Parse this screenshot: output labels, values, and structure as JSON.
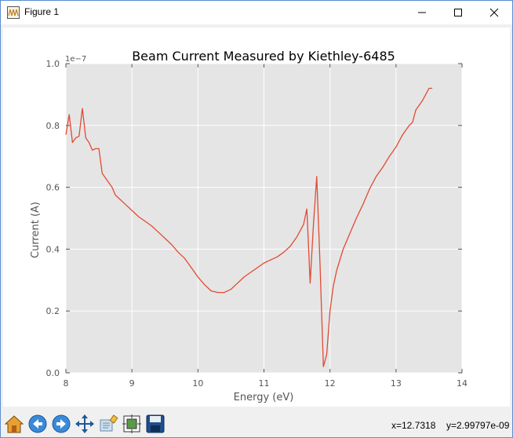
{
  "window": {
    "title": "Figure 1",
    "controls": {
      "minimize": "minimize",
      "maximize": "maximize",
      "close": "close"
    }
  },
  "toolbar": {
    "buttons": [
      "home-icon",
      "back-arrow-icon",
      "forward-arrow-icon",
      "pan-icon",
      "zoom-icon",
      "configure-subplots-icon",
      "save-icon"
    ],
    "x_readout": "x=12.7318",
    "y_readout": "y=2.99797e-09"
  },
  "colors": {
    "plot_background": "#e5e5e5",
    "line": "#e24a33",
    "grid": "#ffffff"
  },
  "chart_data": {
    "type": "line",
    "title": "Beam Current Measured by Kiethley-6485",
    "xlabel": "Energy (eV)",
    "ylabel": "Current (A)",
    "y_offset_label": "1e−7",
    "xlim": [
      8,
      14
    ],
    "ylim": [
      0.0,
      1.0
    ],
    "xticks": [
      "8",
      "9",
      "10",
      "11",
      "12",
      "13",
      "14"
    ],
    "yticks": [
      "0.0",
      "0.2",
      "0.4",
      "0.6",
      "0.8",
      "1.0"
    ],
    "grid": true,
    "series": [
      {
        "x": [
          8.0,
          8.05,
          8.1,
          8.15,
          8.2,
          8.25,
          8.3,
          8.35,
          8.4,
          8.45,
          8.5,
          8.55,
          8.6,
          8.65,
          8.7,
          8.75,
          8.8,
          8.85,
          8.9,
          8.95,
          9.0,
          9.1,
          9.2,
          9.3,
          9.4,
          9.5,
          9.6,
          9.7,
          9.8,
          9.9,
          10.0,
          10.1,
          10.2,
          10.3,
          10.4,
          10.5,
          10.6,
          10.7,
          10.8,
          10.9,
          11.0,
          11.1,
          11.2,
          11.3,
          11.4,
          11.5,
          11.6,
          11.65,
          11.7,
          11.75,
          11.8,
          11.85,
          11.9,
          11.95,
          12.0,
          12.05,
          12.1,
          12.2,
          12.3,
          12.4,
          12.5,
          12.6,
          12.7,
          12.8,
          12.9,
          13.0,
          13.1,
          13.2,
          13.25,
          13.3,
          13.35,
          13.4,
          13.45,
          13.5,
          13.55
        ],
        "y": [
          0.77,
          0.835,
          0.745,
          0.76,
          0.765,
          0.855,
          0.76,
          0.745,
          0.72,
          0.725,
          0.725,
          0.645,
          0.63,
          0.615,
          0.6,
          0.575,
          0.565,
          0.555,
          0.545,
          0.535,
          0.525,
          0.505,
          0.49,
          0.475,
          0.455,
          0.435,
          0.415,
          0.39,
          0.37,
          0.34,
          0.31,
          0.285,
          0.265,
          0.26,
          0.26,
          0.27,
          0.29,
          0.31,
          0.325,
          0.34,
          0.355,
          0.365,
          0.375,
          0.39,
          0.41,
          0.44,
          0.48,
          0.53,
          0.29,
          0.48,
          0.635,
          0.35,
          0.02,
          0.06,
          0.2,
          0.28,
          0.33,
          0.4,
          0.45,
          0.5,
          0.545,
          0.595,
          0.635,
          0.665,
          0.7,
          0.73,
          0.77,
          0.8,
          0.81,
          0.85,
          0.865,
          0.88,
          0.9,
          0.92,
          0.92
        ]
      }
    ]
  }
}
